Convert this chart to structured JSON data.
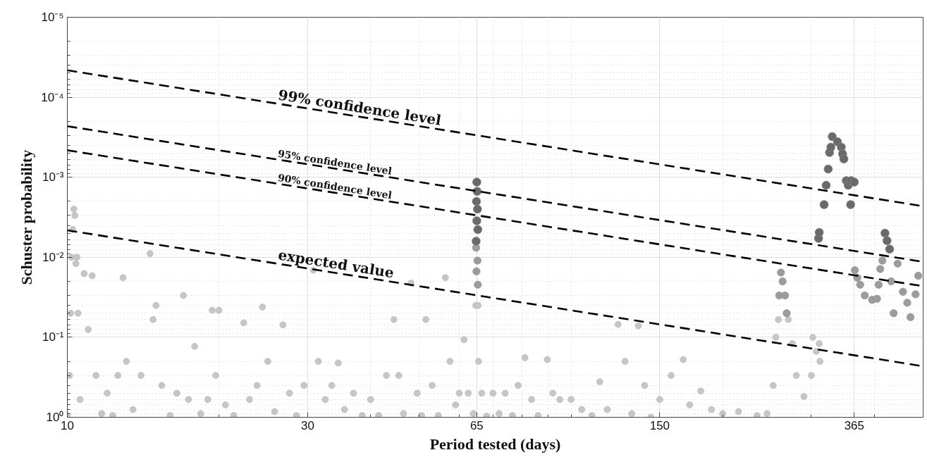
{
  "chart_data": {
    "type": "scatter",
    "xlabel": "Period tested (days)",
    "ylabel": "Schuster probability",
    "log": "xy",
    "grid": true,
    "marker": "circle",
    "xlim": [
      10,
      500
    ],
    "ylim": [
      1,
      1e-05
    ],
    "xticks": [
      10,
      30,
      65,
      150,
      365,
      {
        "value": 20,
        "label": null
      },
      {
        "value": 40,
        "label": null
      },
      {
        "value": 50,
        "label": null
      },
      {
        "value": 60,
        "label": null
      },
      {
        "value": 70,
        "label": null
      },
      {
        "value": 80,
        "label": null
      },
      {
        "value": 90,
        "label": null
      },
      {
        "value": 100,
        "label": null
      },
      {
        "value": 200,
        "label": null
      },
      {
        "value": 300,
        "label": null
      },
      {
        "value": 400,
        "label": null
      }
    ],
    "yticks": [
      {
        "value": 1e-05,
        "label": "10⁻⁵"
      },
      {
        "value": 0.0001,
        "label": "10⁻⁴"
      },
      {
        "value": 0.001,
        "label": "10⁻³"
      },
      {
        "value": 0.01,
        "label": "10⁻²"
      },
      {
        "value": 0.1,
        "label": "10⁻¹"
      },
      {
        "value": 1,
        "label": "10⁰"
      },
      {
        "value": 2e-05,
        "label": null
      },
      {
        "value": 3e-05,
        "label": null
      },
      {
        "value": 4e-05,
        "label": null
      },
      {
        "value": 5e-05,
        "label": null
      },
      {
        "value": 6e-05,
        "label": null
      },
      {
        "value": 7e-05,
        "label": null
      },
      {
        "value": 8e-05,
        "label": null
      },
      {
        "value": 9e-05,
        "label": null
      },
      {
        "value": 0.0002,
        "label": null
      },
      {
        "value": 0.0003,
        "label": null
      },
      {
        "value": 0.0004,
        "label": null
      },
      {
        "value": 0.0005,
        "label": null
      },
      {
        "value": 0.0006,
        "label": null
      },
      {
        "value": 0.0007,
        "label": null
      },
      {
        "value": 0.0008,
        "label": null
      },
      {
        "value": 0.0009,
        "label": null
      },
      {
        "value": 0.002,
        "label": null
      },
      {
        "value": 0.003,
        "label": null
      },
      {
        "value": 0.004,
        "label": null
      },
      {
        "value": 0.005,
        "label": null
      },
      {
        "value": 0.006,
        "label": null
      },
      {
        "value": 0.007,
        "label": null
      },
      {
        "value": 0.008,
        "label": null
      },
      {
        "value": 0.009,
        "label": null
      },
      {
        "value": 0.02,
        "label": null
      },
      {
        "value": 0.03,
        "label": null
      },
      {
        "value": 0.04,
        "label": null
      },
      {
        "value": 0.05,
        "label": null
      },
      {
        "value": 0.06,
        "label": null
      },
      {
        "value": 0.07,
        "label": null
      },
      {
        "value": 0.08,
        "label": null
      },
      {
        "value": 0.09,
        "label": null
      },
      {
        "value": 0.2,
        "label": null
      },
      {
        "value": 0.3,
        "label": null
      },
      {
        "value": 0.4,
        "label": null
      },
      {
        "value": 0.5,
        "label": null
      },
      {
        "value": 0.6,
        "label": null
      },
      {
        "value": 0.7,
        "label": null
      },
      {
        "value": 0.8,
        "label": null
      },
      {
        "value": 0.9,
        "label": null
      }
    ],
    "series": [
      {
        "color": "#c6c6c6",
        "x": [
          10.0,
          10.1,
          10.15,
          10.2,
          10.25,
          10.3,
          10.35,
          10.4,
          10.45,
          10.5,
          10.6,
          10.8,
          11.0,
          11.2,
          11.4,
          11.7,
          12.0,
          12.3,
          12.6,
          12.9,
          13.1,
          13.5,
          14.0,
          14.6,
          14.8,
          15.0,
          15.4,
          16.0,
          16.5,
          17.0,
          17.4,
          17.9,
          18.4,
          19.0,
          19.4,
          19.7,
          20.0,
          20.6,
          21.4,
          22.4,
          23.0,
          23.8,
          24.4,
          25.0,
          25.8,
          26.8,
          27.6,
          28.5,
          29.5,
          30.8,
          31.5,
          32.5,
          33.5,
          34.5,
          35.5,
          37.0,
          38.5,
          40.0,
          41.5,
          43.0,
          44.5,
          45.5,
          46.5,
          48.1,
          49.5,
          50.5,
          51.5,
          53.0,
          54.5,
          56.3,
          57.5,
          59.0,
          60.0,
          61.3,
          62.5,
          64.0,
          64.7,
          65.4,
          65.5,
          66.5,
          68.0,
          70.0,
          72.0,
          74.0,
          76.5,
          78.5,
          81.0,
          83.5,
          86.0,
          89.7,
          92.0,
          95.0,
          100.0,
          105.0,
          110.0,
          114.0,
          118.0,
          124.0,
          128.0,
          132.0,
          136.0,
          140.0,
          144.0,
          150.0,
          158.0,
          167.0,
          172.0,
          181.0,
          190.0,
          200.0,
          215.0,
          234.0,
          245.0,
          252.0,
          255.0,
          258.0,
          270.0,
          275.0,
          280.0,
          290.0,
          300.0,
          302.0,
          307.0,
          311.0,
          312.0
        ],
        "values": [
          0.95,
          0.3,
          0.05,
          0.01,
          0.0045,
          0.0025,
          0.003,
          0.012,
          0.01,
          0.05,
          0.6,
          0.016,
          0.08,
          0.017,
          0.3,
          0.9,
          0.5,
          0.95,
          0.3,
          0.018,
          0.2,
          0.8,
          0.3,
          0.009,
          0.06,
          0.04,
          0.4,
          0.95,
          0.5,
          0.03,
          0.6,
          0.13,
          0.9,
          0.6,
          0.046,
          0.3,
          0.046,
          0.7,
          0.95,
          0.066,
          0.6,
          0.4,
          0.042,
          0.2,
          0.85,
          0.07,
          0.5,
          0.95,
          0.4,
          0.0145,
          0.2,
          0.6,
          0.4,
          0.21,
          0.8,
          0.5,
          0.95,
          0.6,
          0.95,
          0.3,
          0.06,
          0.3,
          0.9,
          0.021,
          0.5,
          0.95,
          0.06,
          0.4,
          0.95,
          0.018,
          0.2,
          0.7,
          0.5,
          0.107,
          0.5,
          0.9,
          0.04,
          0.04,
          0.2,
          0.5,
          0.97,
          0.5,
          0.9,
          0.5,
          0.95,
          0.4,
          0.18,
          0.6,
          0.95,
          0.19,
          0.5,
          0.6,
          0.6,
          0.8,
          0.95,
          0.36,
          0.8,
          0.069,
          0.2,
          0.9,
          0.072,
          0.4,
          1.0,
          0.6,
          0.3,
          0.19,
          0.7,
          0.47,
          0.8,
          0.9,
          0.85,
          0.95,
          0.9,
          0.4,
          0.1,
          0.06,
          0.06,
          0.12,
          0.3,
          0.55,
          0.3,
          0.1,
          0.15,
          0.12,
          0.2
        ]
      },
      {
        "color": "#9c9c9c",
        "x": [
          64.8,
          65.2,
          64.9,
          65.3,
          259,
          261,
          263,
          266,
          268,
          366,
          370,
          375,
          383,
          396,
          405,
          408,
          411,
          415,
          445,
          432,
          437,
          456,
          465,
          472,
          483,
          489
        ],
        "values": [
          0.0076,
          0.011,
          0.015,
          0.022,
          0.03,
          0.0155,
          0.02,
          0.03,
          0.05,
          0.0145,
          0.018,
          0.022,
          0.03,
          0.034,
          0.033,
          0.022,
          0.014,
          0.011,
          0.012,
          0.02,
          0.05,
          0.027,
          0.037,
          0.056,
          0.029,
          0.017
        ]
      },
      {
        "color": "#6a6a6a",
        "x": [
          65.0,
          65.1,
          64.9,
          65.2,
          65.0,
          65.3,
          64.8,
          310,
          311,
          318,
          321,
          324,
          326,
          328,
          330,
          338,
          344,
          346,
          348,
          352,
          355,
          360,
          365,
          359,
          420,
          424,
          429
        ],
        "values": [
          0.00115,
          0.0015,
          0.002,
          0.0025,
          0.0035,
          0.0045,
          0.0063,
          0.0058,
          0.0049,
          0.0022,
          0.00126,
          0.00079,
          0.00049,
          0.00042,
          0.00031,
          0.00036,
          0.00042,
          0.00051,
          0.00059,
          0.0011,
          0.00126,
          0.0011,
          0.00115,
          0.0022,
          0.005,
          0.0062,
          0.0079
        ]
      },
      {
        "type": "line",
        "name": "99% confidence level",
        "color": "#000000",
        "line_style": "dashed",
        "marker": "none",
        "x": [
          10,
          500
        ],
        "values": [
          4.6e-05,
          0.0023
        ]
      },
      {
        "type": "line",
        "name": "95% confidence level",
        "color": "#000000",
        "line_style": "dashed",
        "marker": "none",
        "x": [
          10,
          500
        ],
        "values": [
          0.00023,
          0.0114
        ]
      },
      {
        "type": "line",
        "name": "90% confidence level",
        "color": "#000000",
        "line_style": "dashed",
        "marker": "none",
        "x": [
          10,
          500
        ],
        "values": [
          0.00046,
          0.023
        ]
      },
      {
        "type": "line",
        "name": "expected value",
        "color": "#000000",
        "line_style": "dashed",
        "marker": "none",
        "x": [
          10,
          500
        ],
        "values": [
          0.0046,
          0.23
        ]
      }
    ]
  }
}
